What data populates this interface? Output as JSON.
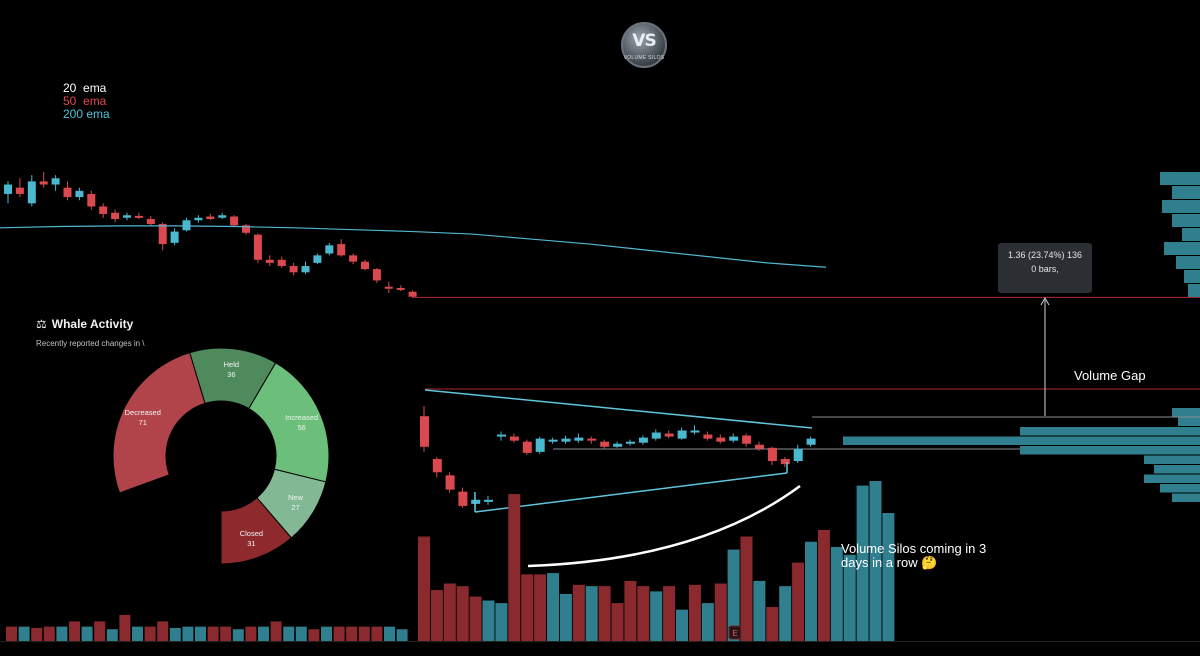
{
  "logo": {
    "text": "VS",
    "subtext": "VOLUME SILOS"
  },
  "ema_legend": [
    {
      "label": "20  ema",
      "color": "#ffffff"
    },
    {
      "label": "50  ema",
      "color": "#e0474c"
    },
    {
      "label": "200 ema",
      "color": "#4fc3d9"
    }
  ],
  "whale_widget": {
    "icon": "scale-icon",
    "title": "Whale Activity",
    "subtitle": "Recently reported changes in \\"
  },
  "tooltip": {
    "line1": "1.36 (23.74%) 136",
    "line2": "0 bars,"
  },
  "annotations": {
    "volume_gap": "Volume Gap",
    "volume_silos": "Volume Silos coming in 3 days in a row 🤔"
  },
  "earnings_marker": "E",
  "colors": {
    "up": "#4ab8cf",
    "down": "#d9494f",
    "vol_up": "#2f7f8f",
    "vol_down": "#8b2a2e",
    "ema200": "#4fb7cf",
    "hline": "#b02a31"
  },
  "chart_data": [
    {
      "type": "candlestick",
      "title": "",
      "y_axis": "hidden",
      "segments": [
        {
          "name": "upper",
          "candles": [
            {
              "o": 5.1,
              "c": 5.25,
              "h": 5.3,
              "l": 4.95
            },
            {
              "o": 5.2,
              "c": 5.1,
              "h": 5.35,
              "l": 5.05
            },
            {
              "o": 4.95,
              "c": 5.3,
              "h": 5.4,
              "l": 4.9
            },
            {
              "o": 5.3,
              "c": 5.25,
              "h": 5.45,
              "l": 5.2
            },
            {
              "o": 5.25,
              "c": 5.35,
              "h": 5.4,
              "l": 5.15
            },
            {
              "o": 5.2,
              "c": 5.05,
              "h": 5.3,
              "l": 5.0
            },
            {
              "o": 5.05,
              "c": 5.15,
              "h": 5.2,
              "l": 5.0
            },
            {
              "o": 5.1,
              "c": 4.9,
              "h": 5.15,
              "l": 4.85
            },
            {
              "o": 4.9,
              "c": 4.78,
              "h": 4.95,
              "l": 4.72
            },
            {
              "o": 4.8,
              "c": 4.7,
              "h": 4.85,
              "l": 4.65
            },
            {
              "o": 4.72,
              "c": 4.76,
              "h": 4.8,
              "l": 4.68
            },
            {
              "o": 4.75,
              "c": 4.72,
              "h": 4.8,
              "l": 4.7
            },
            {
              "o": 4.7,
              "c": 4.62,
              "h": 4.75,
              "l": 4.6
            },
            {
              "o": 4.62,
              "c": 4.3,
              "h": 4.65,
              "l": 4.2
            },
            {
              "o": 4.32,
              "c": 4.5,
              "h": 4.55,
              "l": 4.28
            },
            {
              "o": 4.52,
              "c": 4.68,
              "h": 4.72,
              "l": 4.5
            },
            {
              "o": 4.68,
              "c": 4.72,
              "h": 4.76,
              "l": 4.64
            },
            {
              "o": 4.74,
              "c": 4.7,
              "h": 4.78,
              "l": 4.68
            },
            {
              "o": 4.72,
              "c": 4.76,
              "h": 4.8,
              "l": 4.7
            },
            {
              "o": 4.74,
              "c": 4.6,
              "h": 4.76,
              "l": 4.58
            },
            {
              "o": 4.6,
              "c": 4.48,
              "h": 4.62,
              "l": 4.45
            },
            {
              "o": 4.45,
              "c": 4.05,
              "h": 4.47,
              "l": 4.0
            },
            {
              "o": 4.05,
              "c": 4.0,
              "h": 4.12,
              "l": 3.95
            },
            {
              "o": 4.05,
              "c": 3.95,
              "h": 4.1,
              "l": 3.92
            },
            {
              "o": 3.95,
              "c": 3.85,
              "h": 4.0,
              "l": 3.8
            },
            {
              "o": 3.85,
              "c": 3.95,
              "h": 4.02,
              "l": 3.82
            },
            {
              "o": 4.0,
              "c": 4.12,
              "h": 4.15,
              "l": 3.98
            },
            {
              "o": 4.15,
              "c": 4.28,
              "h": 4.32,
              "l": 4.12
            },
            {
              "o": 4.3,
              "c": 4.12,
              "h": 4.38,
              "l": 4.1
            },
            {
              "o": 4.12,
              "c": 4.02,
              "h": 4.15,
              "l": 3.98
            },
            {
              "o": 4.02,
              "c": 3.9,
              "h": 4.05,
              "l": 3.88
            },
            {
              "o": 3.9,
              "c": 3.72,
              "h": 3.92,
              "l": 3.68
            },
            {
              "o": 3.62,
              "c": 3.6,
              "h": 3.7,
              "l": 3.52
            },
            {
              "o": 3.6,
              "c": 3.58,
              "h": 3.64,
              "l": 3.55
            },
            {
              "o": 3.54,
              "c": 3.46,
              "h": 3.56,
              "l": 3.44
            }
          ]
        },
        {
          "name": "lower",
          "candles": [
            {
              "o": 2.8,
              "c": 2.5,
              "h": 2.9,
              "l": 2.45
            },
            {
              "o": 2.38,
              "c": 2.25,
              "h": 2.4,
              "l": 2.2
            },
            {
              "o": 2.22,
              "c": 2.08,
              "h": 2.25,
              "l": 2.05
            },
            {
              "o": 2.06,
              "c": 1.92,
              "h": 2.1,
              "l": 1.9
            },
            {
              "o": 1.94,
              "c": 1.98,
              "h": 2.0,
              "l": 1.88
            },
            {
              "o": 1.96,
              "c": 1.98,
              "h": 2.02,
              "l": 1.93
            },
            {
              "o": 2.6,
              "c": 2.62,
              "h": 2.65,
              "l": 2.56
            },
            {
              "o": 2.6,
              "c": 2.56,
              "h": 2.63,
              "l": 2.54
            },
            {
              "o": 2.55,
              "c": 2.44,
              "h": 2.57,
              "l": 2.42
            },
            {
              "o": 2.45,
              "c": 2.58,
              "h": 2.6,
              "l": 2.43
            },
            {
              "o": 2.55,
              "c": 2.57,
              "h": 2.59,
              "l": 2.53
            },
            {
              "o": 2.55,
              "c": 2.58,
              "h": 2.61,
              "l": 2.53
            },
            {
              "o": 2.56,
              "c": 2.59,
              "h": 2.63,
              "l": 2.54
            },
            {
              "o": 2.58,
              "c": 2.56,
              "h": 2.6,
              "l": 2.53
            },
            {
              "o": 2.55,
              "c": 2.5,
              "h": 2.57,
              "l": 2.48
            },
            {
              "o": 2.5,
              "c": 2.53,
              "h": 2.55,
              "l": 2.49
            },
            {
              "o": 2.53,
              "c": 2.55,
              "h": 2.57,
              "l": 2.51
            },
            {
              "o": 2.54,
              "c": 2.59,
              "h": 2.61,
              "l": 2.52
            },
            {
              "o": 2.58,
              "c": 2.64,
              "h": 2.67,
              "l": 2.56
            },
            {
              "o": 2.63,
              "c": 2.6,
              "h": 2.66,
              "l": 2.58
            },
            {
              "o": 2.58,
              "c": 2.66,
              "h": 2.69,
              "l": 2.57
            },
            {
              "o": 2.64,
              "c": 2.66,
              "h": 2.71,
              "l": 2.62
            },
            {
              "o": 2.62,
              "c": 2.58,
              "h": 2.65,
              "l": 2.56
            },
            {
              "o": 2.59,
              "c": 2.55,
              "h": 2.62,
              "l": 2.53
            },
            {
              "o": 2.56,
              "c": 2.6,
              "h": 2.63,
              "l": 2.54
            },
            {
              "o": 2.61,
              "c": 2.53,
              "h": 2.63,
              "l": 2.5
            },
            {
              "o": 2.52,
              "c": 2.48,
              "h": 2.55,
              "l": 2.46
            },
            {
              "o": 2.49,
              "c": 2.36,
              "h": 2.5,
              "l": 2.32
            },
            {
              "o": 2.38,
              "c": 2.33,
              "h": 2.4,
              "l": 2.3
            },
            {
              "o": 2.36,
              "c": 2.48,
              "h": 2.52,
              "l": 2.34
            },
            {
              "o": 2.52,
              "c": 2.58,
              "h": 2.6,
              "l": 2.5
            }
          ]
        }
      ],
      "ema200": [
        4.56,
        4.58,
        4.59,
        4.59,
        4.58,
        4.56,
        4.53,
        4.5,
        4.46,
        4.38,
        4.3,
        4.2,
        4.1,
        4.0,
        3.93
      ],
      "horizontal_level": 3.45,
      "volume": [
        {
          "v": 22,
          "d": 0
        },
        {
          "v": 22,
          "d": 1
        },
        {
          "v": 20,
          "d": 0
        },
        {
          "v": 22,
          "d": 0
        },
        {
          "v": 22,
          "d": 1
        },
        {
          "v": 30,
          "d": 0
        },
        {
          "v": 22,
          "d": 1
        },
        {
          "v": 30,
          "d": 0
        },
        {
          "v": 18,
          "d": 1
        },
        {
          "v": 40,
          "d": 0
        },
        {
          "v": 22,
          "d": 1
        },
        {
          "v": 22,
          "d": 0
        },
        {
          "v": 30,
          "d": 0
        },
        {
          "v": 20,
          "d": 1
        },
        {
          "v": 22,
          "d": 1
        },
        {
          "v": 22,
          "d": 1
        },
        {
          "v": 22,
          "d": 0
        },
        {
          "v": 22,
          "d": 0
        },
        {
          "v": 18,
          "d": 1
        },
        {
          "v": 22,
          "d": 0
        },
        {
          "v": 22,
          "d": 1
        },
        {
          "v": 30,
          "d": 0
        },
        {
          "v": 22,
          "d": 1
        },
        {
          "v": 22,
          "d": 1
        },
        {
          "v": 18,
          "d": 0
        },
        {
          "v": 22,
          "d": 1
        },
        {
          "v": 22,
          "d": 0
        },
        {
          "v": 22,
          "d": 0
        },
        {
          "v": 22,
          "d": 0
        },
        {
          "v": 22,
          "d": 0
        },
        {
          "v": 22,
          "d": 1
        },
        {
          "v": 18,
          "d": 1
        },
        {
          "v": 160,
          "d": 0
        },
        {
          "v": 78,
          "d": 0
        },
        {
          "v": 88,
          "d": 0
        },
        {
          "v": 84,
          "d": 0
        },
        {
          "v": 68,
          "d": 0
        },
        {
          "v": 62,
          "d": 1
        },
        {
          "v": 58,
          "d": 1
        },
        {
          "v": 225,
          "d": 0
        },
        {
          "v": 102,
          "d": 0
        },
        {
          "v": 102,
          "d": 0
        },
        {
          "v": 104,
          "d": 1
        },
        {
          "v": 72,
          "d": 1
        },
        {
          "v": 86,
          "d": 0
        },
        {
          "v": 84,
          "d": 1
        },
        {
          "v": 84,
          "d": 0
        },
        {
          "v": 58,
          "d": 0
        },
        {
          "v": 92,
          "d": 0
        },
        {
          "v": 84,
          "d": 0
        },
        {
          "v": 76,
          "d": 1
        },
        {
          "v": 84,
          "d": 0
        },
        {
          "v": 48,
          "d": 1
        },
        {
          "v": 86,
          "d": 0
        },
        {
          "v": 58,
          "d": 1
        },
        {
          "v": 88,
          "d": 0
        },
        {
          "v": 140,
          "d": 1
        },
        {
          "v": 160,
          "d": 0
        },
        {
          "v": 92,
          "d": 1
        },
        {
          "v": 52,
          "d": 0
        },
        {
          "v": 84,
          "d": 1
        },
        {
          "v": 120,
          "d": 0
        },
        {
          "v": 152,
          "d": 1
        },
        {
          "v": 170,
          "d": 0
        },
        {
          "v": 144,
          "d": 1
        },
        {
          "v": 132,
          "d": 1
        },
        {
          "v": 238,
          "d": 1
        },
        {
          "v": 245,
          "d": 1
        },
        {
          "v": 196,
          "d": 1
        }
      ],
      "volume_profile": {
        "top": [
          40,
          28,
          38,
          28,
          18,
          36,
          24,
          16,
          12
        ],
        "bottom": [
          28,
          22,
          180,
          360,
          180,
          56,
          46,
          56,
          40,
          28
        ]
      }
    },
    {
      "type": "pie",
      "title": "",
      "slices": [
        {
          "label": "Decreased",
          "value": 71,
          "color": "#b1444a"
        },
        {
          "label": "Held",
          "value": 36,
          "color": "#4f8a5c"
        },
        {
          "label": "Increased",
          "value": 56,
          "color": "#6bbf7a"
        },
        {
          "label": "New",
          "value": 27,
          "color": "#82b894"
        },
        {
          "label": "Closed",
          "value": 31,
          "color": "#8e2a2e"
        }
      ]
    }
  ]
}
